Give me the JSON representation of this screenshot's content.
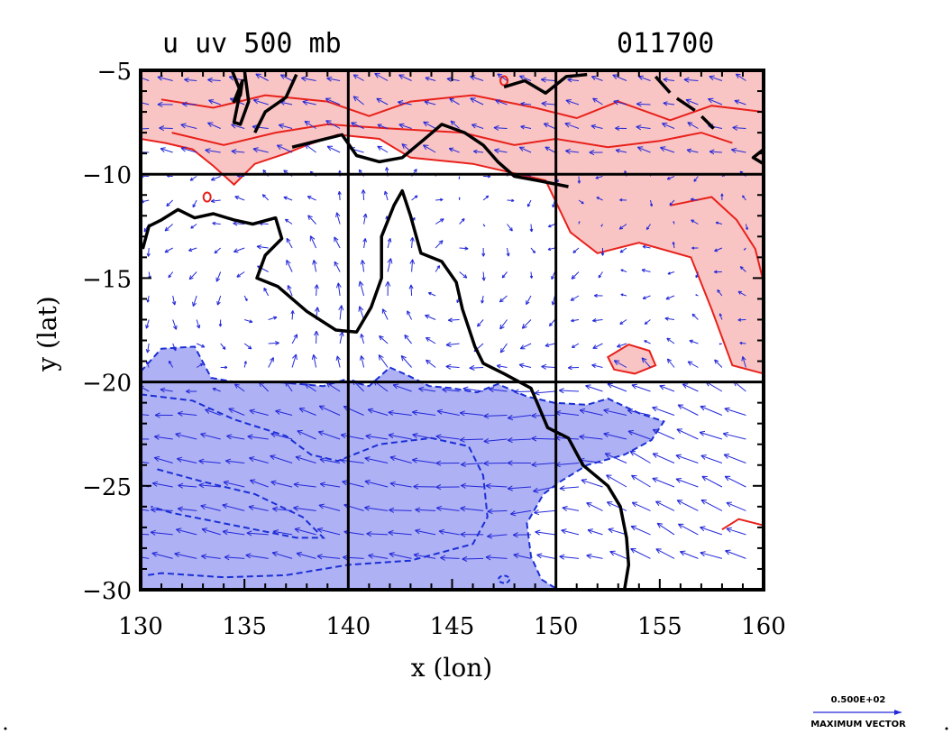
{
  "chart_data": {
    "type": "vector-contour-map",
    "title_left": "u  uv 500  mb",
    "title_right": "011700",
    "xlabel": "x (lon)",
    "ylabel": "y (lat)",
    "xlim": [
      130,
      160
    ],
    "ylim": [
      -30,
      -5
    ],
    "x_ticks": [
      130,
      135,
      140,
      145,
      150,
      155,
      160
    ],
    "x_tick_labels": [
      "130",
      "135",
      "140",
      "145",
      "150",
      "155",
      "160"
    ],
    "y_ticks": [
      -5,
      -10,
      -15,
      -20,
      -25,
      -30
    ],
    "y_tick_labels": [
      "−5",
      "−10",
      "−15",
      "−20",
      "−25",
      "−30"
    ],
    "grid_lines": {
      "lon": [
        140,
        150
      ],
      "lat": [
        -10,
        -20
      ]
    },
    "reference_vector": {
      "value_label": "0.500E+02",
      "caption": "MAXIMUM VECTOR"
    },
    "colors": {
      "positive_fill": "#f9c4c4",
      "positive_contour": "#e8211b",
      "negative_fill": "#aeb1f4",
      "negative_contour": "#1a2fd6",
      "vector": "#2328d8",
      "coastline": "#000000"
    },
    "positive_region": [
      [
        130,
        -5
      ],
      [
        160,
        -5
      ],
      [
        160,
        -19.6
      ],
      [
        158.5,
        -19.2
      ],
      [
        157.5,
        -16.5
      ],
      [
        156.5,
        -14
      ],
      [
        154,
        -13.3
      ],
      [
        152,
        -13.8
      ],
      [
        150.7,
        -12.8
      ],
      [
        149.5,
        -10.3
      ],
      [
        146,
        -9.5
      ],
      [
        143,
        -9.2
      ],
      [
        141.5,
        -8.3
      ],
      [
        139.5,
        -8.1
      ],
      [
        138,
        -8.6
      ],
      [
        137,
        -9
      ],
      [
        135.5,
        -9.5
      ],
      [
        134.5,
        -10.5
      ],
      [
        133.5,
        -9.6
      ],
      [
        132.5,
        -8.8
      ],
      [
        131.2,
        -8.5
      ],
      [
        130,
        -8.3
      ]
    ],
    "positive_islands": [
      [
        [
          152.5,
          -18.8
        ],
        [
          153.5,
          -18.2
        ],
        [
          154.5,
          -18.5
        ],
        [
          154.8,
          -19.2
        ],
        [
          153.8,
          -19.6
        ],
        [
          152.8,
          -19.4
        ]
      ]
    ],
    "positive_contours": [
      [
        [
          131,
          -6.4
        ],
        [
          133.5,
          -6.8
        ],
        [
          136,
          -6.2
        ],
        [
          139,
          -6.5
        ],
        [
          141,
          -7.2
        ],
        [
          143,
          -6.5
        ],
        [
          146,
          -6.2
        ],
        [
          149,
          -6.8
        ],
        [
          151,
          -7.3
        ],
        [
          153,
          -6.5
        ],
        [
          155.5,
          -7.4
        ],
        [
          157.5,
          -6.7
        ],
        [
          160,
          -7
        ]
      ],
      [
        [
          131.5,
          -8
        ],
        [
          134,
          -8.6
        ],
        [
          136.5,
          -8
        ],
        [
          139,
          -7.6
        ],
        [
          142,
          -7.8
        ],
        [
          145.5,
          -8
        ],
        [
          148,
          -8.6
        ],
        [
          150,
          -8.3
        ],
        [
          152.5,
          -8.7
        ],
        [
          155,
          -8.4
        ],
        [
          157,
          -8
        ],
        [
          158.5,
          -8.5
        ]
      ],
      [
        [
          155.5,
          -11.5
        ],
        [
          157.5,
          -11.1
        ],
        [
          158.7,
          -12.2
        ],
        [
          159.6,
          -13.6
        ],
        [
          160,
          -15.2
        ]
      ],
      [
        [
          158,
          -27.1
        ],
        [
          158.8,
          -26.6
        ],
        [
          160,
          -26.9
        ]
      ]
    ],
    "positive_small_loops": [
      {
        "lon": 133.2,
        "lat": -11.1
      },
      {
        "lon": 147.5,
        "lat": -5.5
      }
    ],
    "negative_region": [
      [
        130,
        -19.5
      ],
      [
        131,
        -18.4
      ],
      [
        132.6,
        -18.3
      ],
      [
        133.4,
        -19.8
      ],
      [
        134.5,
        -20
      ],
      [
        136.5,
        -20
      ],
      [
        138.8,
        -20.2
      ],
      [
        139.8,
        -19.9
      ],
      [
        141,
        -20.2
      ],
      [
        142,
        -19.3
      ],
      [
        142.9,
        -19.7
      ],
      [
        143.9,
        -20.2
      ],
      [
        145,
        -20.3
      ],
      [
        146.2,
        -20.5
      ],
      [
        147.2,
        -20.1
      ],
      [
        148.6,
        -20.7
      ],
      [
        149.9,
        -21
      ],
      [
        151.5,
        -21.1
      ],
      [
        152.5,
        -20.8
      ],
      [
        154,
        -21.5
      ],
      [
        155.2,
        -21.9
      ],
      [
        154.6,
        -22.8
      ],
      [
        153.3,
        -23.5
      ],
      [
        151.5,
        -24
      ],
      [
        150.2,
        -24.8
      ],
      [
        149.4,
        -25.4
      ],
      [
        148.6,
        -26.8
      ],
      [
        148.8,
        -28.4
      ],
      [
        149.3,
        -29.5
      ],
      [
        150.1,
        -30
      ],
      [
        130,
        -30
      ]
    ],
    "negative_contours": [
      [
        [
          130,
          -20.6
        ],
        [
          132.5,
          -20.9
        ],
        [
          134.5,
          -21.8
        ],
        [
          137,
          -22.6
        ],
        [
          138.2,
          -23.5
        ],
        [
          139.5,
          -23.8
        ],
        [
          141.5,
          -23
        ],
        [
          144,
          -22.7
        ],
        [
          145.8,
          -23.1
        ],
        [
          146.5,
          -24.5
        ],
        [
          146.7,
          -26.5
        ],
        [
          146,
          -27.8
        ],
        [
          143,
          -28.6
        ],
        [
          140,
          -28.8
        ],
        [
          137,
          -29.3
        ],
        [
          134,
          -29.4
        ],
        [
          131,
          -29.2
        ],
        [
          130.3,
          -29.3
        ]
      ],
      [
        [
          130.8,
          -24.2
        ],
        [
          133,
          -24.8
        ],
        [
          135.5,
          -25.4
        ],
        [
          137.8,
          -26.5
        ],
        [
          138.8,
          -27.5
        ],
        [
          137.5,
          -27.5
        ],
        [
          135.5,
          -27.1
        ],
        [
          133.5,
          -26.7
        ],
        [
          131.5,
          -26.3
        ],
        [
          130.5,
          -26
        ]
      ]
    ],
    "negative_small_loops": [
      {
        "lon": 147.5,
        "lat": -29.5
      }
    ],
    "coastline_mainland": [
      [
        135.5,
        -8
      ],
      [
        136,
        -7
      ],
      [
        137,
        -6.3
      ],
      [
        137.5,
        -5.2
      ]
    ],
    "coastline_new_guinea": [
      [
        137.3,
        -8.7
      ],
      [
        138.5,
        -8.4
      ],
      [
        139.7,
        -8.1
      ],
      [
        140.4,
        -9.1
      ],
      [
        141.5,
        -9.4
      ],
      [
        142.6,
        -9.2
      ],
      [
        143.8,
        -8.2
      ],
      [
        144.5,
        -7.6
      ],
      [
        145.6,
        -8
      ],
      [
        146.5,
        -8.6
      ],
      [
        147.2,
        -9.4
      ],
      [
        148,
        -10.1
      ],
      [
        149.1,
        -10.3
      ],
      [
        150.6,
        -10.6
      ]
    ],
    "coastline_new_guinea_north": [
      [
        147.5,
        -5.8
      ],
      [
        148.5,
        -5.5
      ],
      [
        149.5,
        -6.1
      ],
      [
        150.5,
        -5.3
      ],
      [
        151.5,
        -5.2
      ]
    ],
    "coastline_australia": [
      [
        130.1,
        -13.6
      ],
      [
        130.4,
        -12.5
      ],
      [
        131,
        -12.2
      ],
      [
        131.8,
        -11.7
      ],
      [
        132.6,
        -12.1
      ],
      [
        133.5,
        -11.9
      ],
      [
        134.5,
        -12.2
      ],
      [
        135.4,
        -12.4
      ],
      [
        136.5,
        -12.1
      ],
      [
        136.8,
        -13.1
      ],
      [
        136,
        -13.9
      ],
      [
        135.6,
        -15
      ],
      [
        136.6,
        -15.4
      ],
      [
        138,
        -16.6
      ],
      [
        139.4,
        -17.5
      ],
      [
        140.4,
        -17.6
      ],
      [
        141.1,
        -16.4
      ],
      [
        141.6,
        -15
      ],
      [
        141.6,
        -13
      ],
      [
        142.2,
        -11.5
      ],
      [
        142.6,
        -10.8
      ],
      [
        143,
        -12
      ],
      [
        143.5,
        -13.8
      ],
      [
        144.5,
        -14.2
      ],
      [
        145.2,
        -15.2
      ],
      [
        145.5,
        -16.5
      ],
      [
        146.1,
        -18.3
      ],
      [
        146.5,
        -19.1
      ],
      [
        147.5,
        -19.6
      ],
      [
        148.8,
        -20.3
      ],
      [
        149.6,
        -22.2
      ],
      [
        150.6,
        -22.7
      ],
      [
        151.3,
        -24
      ],
      [
        152.5,
        -25
      ],
      [
        153.1,
        -26
      ],
      [
        153.4,
        -27.5
      ],
      [
        153.5,
        -28.8
      ],
      [
        153.3,
        -30
      ]
    ],
    "coastline_new_britain": [
      [
        154.8,
        -5.3
      ],
      [
        155.6,
        -6.2
      ],
      [
        156.8,
        -7
      ],
      [
        157.6,
        -7.8
      ]
    ],
    "coastline_west_islands": [
      [
        134.4,
        -5
      ],
      [
        134.8,
        -6
      ],
      [
        134.5,
        -7.5
      ],
      [
        134.8,
        -7.6
      ],
      [
        135.2,
        -6.5
      ],
      [
        135,
        -5
      ]
    ],
    "coastline_small_islands": [
      [
        [
          134.5,
          -6.5
        ],
        [
          134.9,
          -5.5
        ],
        [
          134.8,
          -6.2
        ]
      ],
      [
        [
          159.5,
          -9.2
        ],
        [
          160,
          -8.8
        ],
        [
          160,
          -9.5
        ]
      ]
    ],
    "wind_field_centers": [
      {
        "lon": 136,
        "lat": -16,
        "strength": 1
      },
      {
        "lon": 144.5,
        "lat": -16,
        "strength": -1
      },
      {
        "lon": 152,
        "lat": -24.5,
        "strength": 1
      }
    ]
  }
}
